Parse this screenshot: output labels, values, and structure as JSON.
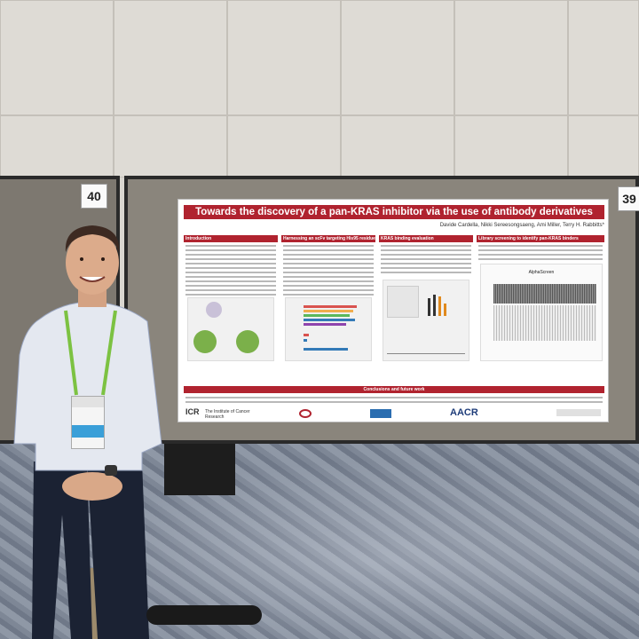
{
  "scene": {
    "description_label": "poster-session-photo"
  },
  "booth_numbers": {
    "left": "40",
    "right": "39"
  },
  "poster": {
    "title": "Towards the discovery of a pan-KRAS inhibitor via the use of antibody derivatives",
    "authors": "Davide Cardella, Nikki Sereesongsaeng, Ami Miller, Terry H. Rabbitts*",
    "sections": [
      "Introduction",
      "Harnessing an scFv targeting His95 residue",
      "KRAS binding evaluation",
      "Library screening to identify pan-KRAS binders"
    ],
    "figure_label": "AlphaScreen",
    "conclusions": "Conclusions and future work",
    "logos": {
      "icr": "ICR",
      "icr_full": "The Institute of Cancer Research",
      "aacr": "AACR"
    }
  },
  "colors": {
    "poster_accent": "#b0232f",
    "lanyard": "#7cc242",
    "board": "#8a857c"
  }
}
